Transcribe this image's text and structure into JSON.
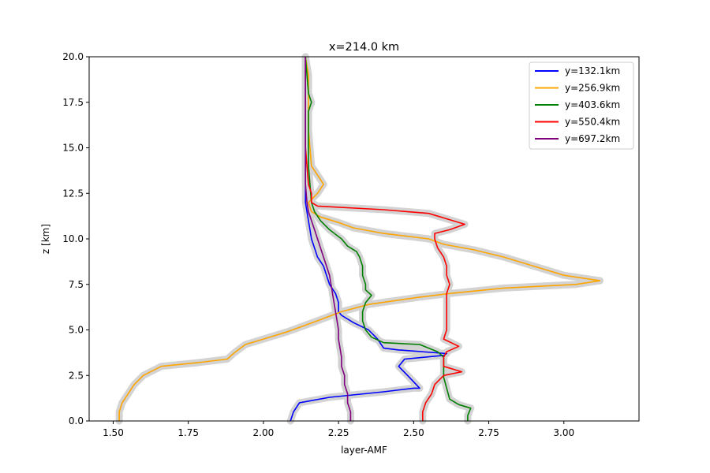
{
  "chart_data": {
    "type": "line",
    "title": "x=214.0 km",
    "xlabel": "layer-AMF",
    "ylabel": "z [km]",
    "xlim": [
      1.42,
      3.25
    ],
    "ylim": [
      0,
      20
    ],
    "xticks": [
      "1.50",
      "1.75",
      "2.00",
      "2.25",
      "2.50",
      "2.75",
      "3.00"
    ],
    "xtick_values": [
      1.5,
      1.75,
      2.0,
      2.25,
      2.5,
      2.75,
      3.0
    ],
    "yticks": [
      "0.0",
      "2.5",
      "5.0",
      "7.5",
      "10.0",
      "12.5",
      "15.0",
      "17.5",
      "20.0"
    ],
    "ytick_values": [
      0,
      2.5,
      5.0,
      7.5,
      10.0,
      12.5,
      15.0,
      17.5,
      20.0
    ],
    "grid": false,
    "legend_position": "top-right",
    "uncertainty_band": {
      "color": "#d3d3d3"
    },
    "series": [
      {
        "name": "y=132.1km",
        "color": "#0000ff",
        "points": [
          [
            2.09,
            0
          ],
          [
            2.1,
            0.5
          ],
          [
            2.12,
            1.0
          ],
          [
            2.22,
            1.3
          ],
          [
            2.4,
            1.6
          ],
          [
            2.5,
            1.8
          ],
          [
            2.52,
            1.8
          ],
          [
            2.48,
            2.5
          ],
          [
            2.45,
            3.0
          ],
          [
            2.47,
            3.4
          ],
          [
            2.6,
            3.6
          ],
          [
            2.61,
            3.7
          ],
          [
            2.45,
            3.9
          ],
          [
            2.4,
            4.0
          ],
          [
            2.38,
            4.5
          ],
          [
            2.35,
            5.0
          ],
          [
            2.3,
            5.4
          ],
          [
            2.26,
            5.8
          ],
          [
            2.25,
            6.0
          ],
          [
            2.25,
            6.5
          ],
          [
            2.24,
            7.0
          ],
          [
            2.22,
            7.5
          ],
          [
            2.21,
            8.0
          ],
          [
            2.2,
            8.5
          ],
          [
            2.18,
            9.0
          ],
          [
            2.17,
            9.5
          ],
          [
            2.16,
            10.0
          ],
          [
            2.155,
            10.5
          ],
          [
            2.15,
            11.0
          ],
          [
            2.145,
            11.5
          ],
          [
            2.14,
            12.0
          ],
          [
            2.14,
            13.0
          ],
          [
            2.14,
            14.0
          ],
          [
            2.14,
            15.0
          ],
          [
            2.14,
            16.0
          ],
          [
            2.14,
            17.0
          ],
          [
            2.14,
            18.0
          ],
          [
            2.14,
            19.0
          ],
          [
            2.14,
            20.0
          ]
        ]
      },
      {
        "name": "y=256.9km",
        "color": "#ffa500",
        "points": [
          [
            1.52,
            0
          ],
          [
            1.52,
            0.5
          ],
          [
            1.53,
            1.0
          ],
          [
            1.55,
            1.5
          ],
          [
            1.57,
            2.0
          ],
          [
            1.6,
            2.5
          ],
          [
            1.66,
            3.0
          ],
          [
            1.78,
            3.2
          ],
          [
            1.88,
            3.4
          ],
          [
            1.9,
            3.7
          ],
          [
            1.94,
            4.2
          ],
          [
            2.0,
            4.5
          ],
          [
            2.08,
            4.9
          ],
          [
            2.13,
            5.2
          ],
          [
            2.18,
            5.5
          ],
          [
            2.26,
            6.0
          ],
          [
            2.35,
            6.4
          ],
          [
            2.52,
            6.8
          ],
          [
            2.62,
            7.0
          ],
          [
            2.8,
            7.3
          ],
          [
            3.04,
            7.5
          ],
          [
            3.12,
            7.7
          ],
          [
            3.0,
            8.0
          ],
          [
            2.9,
            8.5
          ],
          [
            2.8,
            9.0
          ],
          [
            2.7,
            9.4
          ],
          [
            2.6,
            9.7
          ],
          [
            2.55,
            10.0
          ],
          [
            2.4,
            10.3
          ],
          [
            2.3,
            10.6
          ],
          [
            2.25,
            10.9
          ],
          [
            2.19,
            11.2
          ],
          [
            2.16,
            11.5
          ],
          [
            2.15,
            12.0
          ],
          [
            2.18,
            12.5
          ],
          [
            2.2,
            13.0
          ],
          [
            2.18,
            13.5
          ],
          [
            2.16,
            14.0
          ],
          [
            2.155,
            15.0
          ],
          [
            2.15,
            16.0
          ],
          [
            2.15,
            17.0
          ],
          [
            2.15,
            18.0
          ],
          [
            2.15,
            19.0
          ],
          [
            2.14,
            20.0
          ]
        ]
      },
      {
        "name": "y=403.6km",
        "color": "#008000",
        "points": [
          [
            2.68,
            0
          ],
          [
            2.68,
            0.3
          ],
          [
            2.69,
            0.7
          ],
          [
            2.65,
            0.9
          ],
          [
            2.62,
            1.2
          ],
          [
            2.61,
            1.8
          ],
          [
            2.6,
            2.4
          ],
          [
            2.6,
            3.0
          ],
          [
            2.6,
            3.5
          ],
          [
            2.58,
            3.8
          ],
          [
            2.52,
            4.2
          ],
          [
            2.4,
            4.3
          ],
          [
            2.36,
            4.6
          ],
          [
            2.34,
            5.0
          ],
          [
            2.33,
            5.5
          ],
          [
            2.33,
            6.0
          ],
          [
            2.34,
            6.5
          ],
          [
            2.36,
            6.9
          ],
          [
            2.34,
            7.2
          ],
          [
            2.34,
            7.5
          ],
          [
            2.33,
            8.0
          ],
          [
            2.33,
            8.5
          ],
          [
            2.32,
            9.0
          ],
          [
            2.31,
            9.3
          ],
          [
            2.28,
            9.6
          ],
          [
            2.26,
            10.0
          ],
          [
            2.22,
            10.5
          ],
          [
            2.19,
            11.0
          ],
          [
            2.17,
            11.5
          ],
          [
            2.16,
            12.0
          ],
          [
            2.155,
            13.0
          ],
          [
            2.15,
            14.0
          ],
          [
            2.15,
            15.0
          ],
          [
            2.15,
            16.0
          ],
          [
            2.15,
            17.0
          ],
          [
            2.16,
            17.5
          ],
          [
            2.15,
            18.0
          ],
          [
            2.145,
            19.0
          ],
          [
            2.14,
            20.0
          ]
        ]
      },
      {
        "name": "y=550.4km",
        "color": "#ff0000",
        "points": [
          [
            2.53,
            0
          ],
          [
            2.53,
            0.5
          ],
          [
            2.54,
            1.0
          ],
          [
            2.56,
            1.5
          ],
          [
            2.57,
            2.0
          ],
          [
            2.6,
            2.5
          ],
          [
            2.66,
            2.7
          ],
          [
            2.6,
            3.0
          ],
          [
            2.6,
            3.5
          ],
          [
            2.61,
            3.8
          ],
          [
            2.65,
            4.1
          ],
          [
            2.6,
            4.5
          ],
          [
            2.61,
            5.0
          ],
          [
            2.61,
            5.5
          ],
          [
            2.61,
            6.0
          ],
          [
            2.61,
            6.5
          ],
          [
            2.61,
            7.0
          ],
          [
            2.62,
            7.5
          ],
          [
            2.61,
            8.0
          ],
          [
            2.61,
            8.5
          ],
          [
            2.6,
            9.0
          ],
          [
            2.58,
            9.5
          ],
          [
            2.57,
            10.0
          ],
          [
            2.57,
            10.3
          ],
          [
            2.62,
            10.5
          ],
          [
            2.67,
            10.8
          ],
          [
            2.63,
            11.0
          ],
          [
            2.55,
            11.4
          ],
          [
            2.4,
            11.6
          ],
          [
            2.18,
            11.8
          ],
          [
            2.16,
            12.0
          ],
          [
            2.16,
            12.5
          ],
          [
            2.15,
            13.0
          ],
          [
            2.145,
            14.0
          ],
          [
            2.14,
            15.0
          ],
          [
            2.14,
            16.0
          ],
          [
            2.14,
            17.0
          ],
          [
            2.14,
            18.0
          ],
          [
            2.14,
            19.0
          ],
          [
            2.14,
            20.0
          ]
        ]
      },
      {
        "name": "y=697.2km",
        "color": "#800080",
        "points": [
          [
            2.29,
            0
          ],
          [
            2.29,
            0.5
          ],
          [
            2.28,
            1.0
          ],
          [
            2.28,
            1.5
          ],
          [
            2.27,
            2.0
          ],
          [
            2.27,
            2.5
          ],
          [
            2.26,
            3.0
          ],
          [
            2.26,
            3.5
          ],
          [
            2.255,
            4.0
          ],
          [
            2.25,
            4.5
          ],
          [
            2.25,
            5.0
          ],
          [
            2.245,
            5.5
          ],
          [
            2.24,
            6.0
          ],
          [
            2.235,
            6.5
          ],
          [
            2.23,
            7.0
          ],
          [
            2.225,
            7.5
          ],
          [
            2.22,
            8.0
          ],
          [
            2.21,
            8.5
          ],
          [
            2.2,
            9.0
          ],
          [
            2.19,
            9.5
          ],
          [
            2.18,
            10.0
          ],
          [
            2.17,
            10.5
          ],
          [
            2.16,
            11.0
          ],
          [
            2.15,
            11.5
          ],
          [
            2.145,
            12.0
          ],
          [
            2.14,
            13.0
          ],
          [
            2.14,
            14.0
          ],
          [
            2.14,
            15.0
          ],
          [
            2.14,
            16.0
          ],
          [
            2.14,
            17.0
          ],
          [
            2.14,
            18.0
          ],
          [
            2.14,
            19.0
          ],
          [
            2.14,
            20.0
          ]
        ]
      }
    ]
  }
}
